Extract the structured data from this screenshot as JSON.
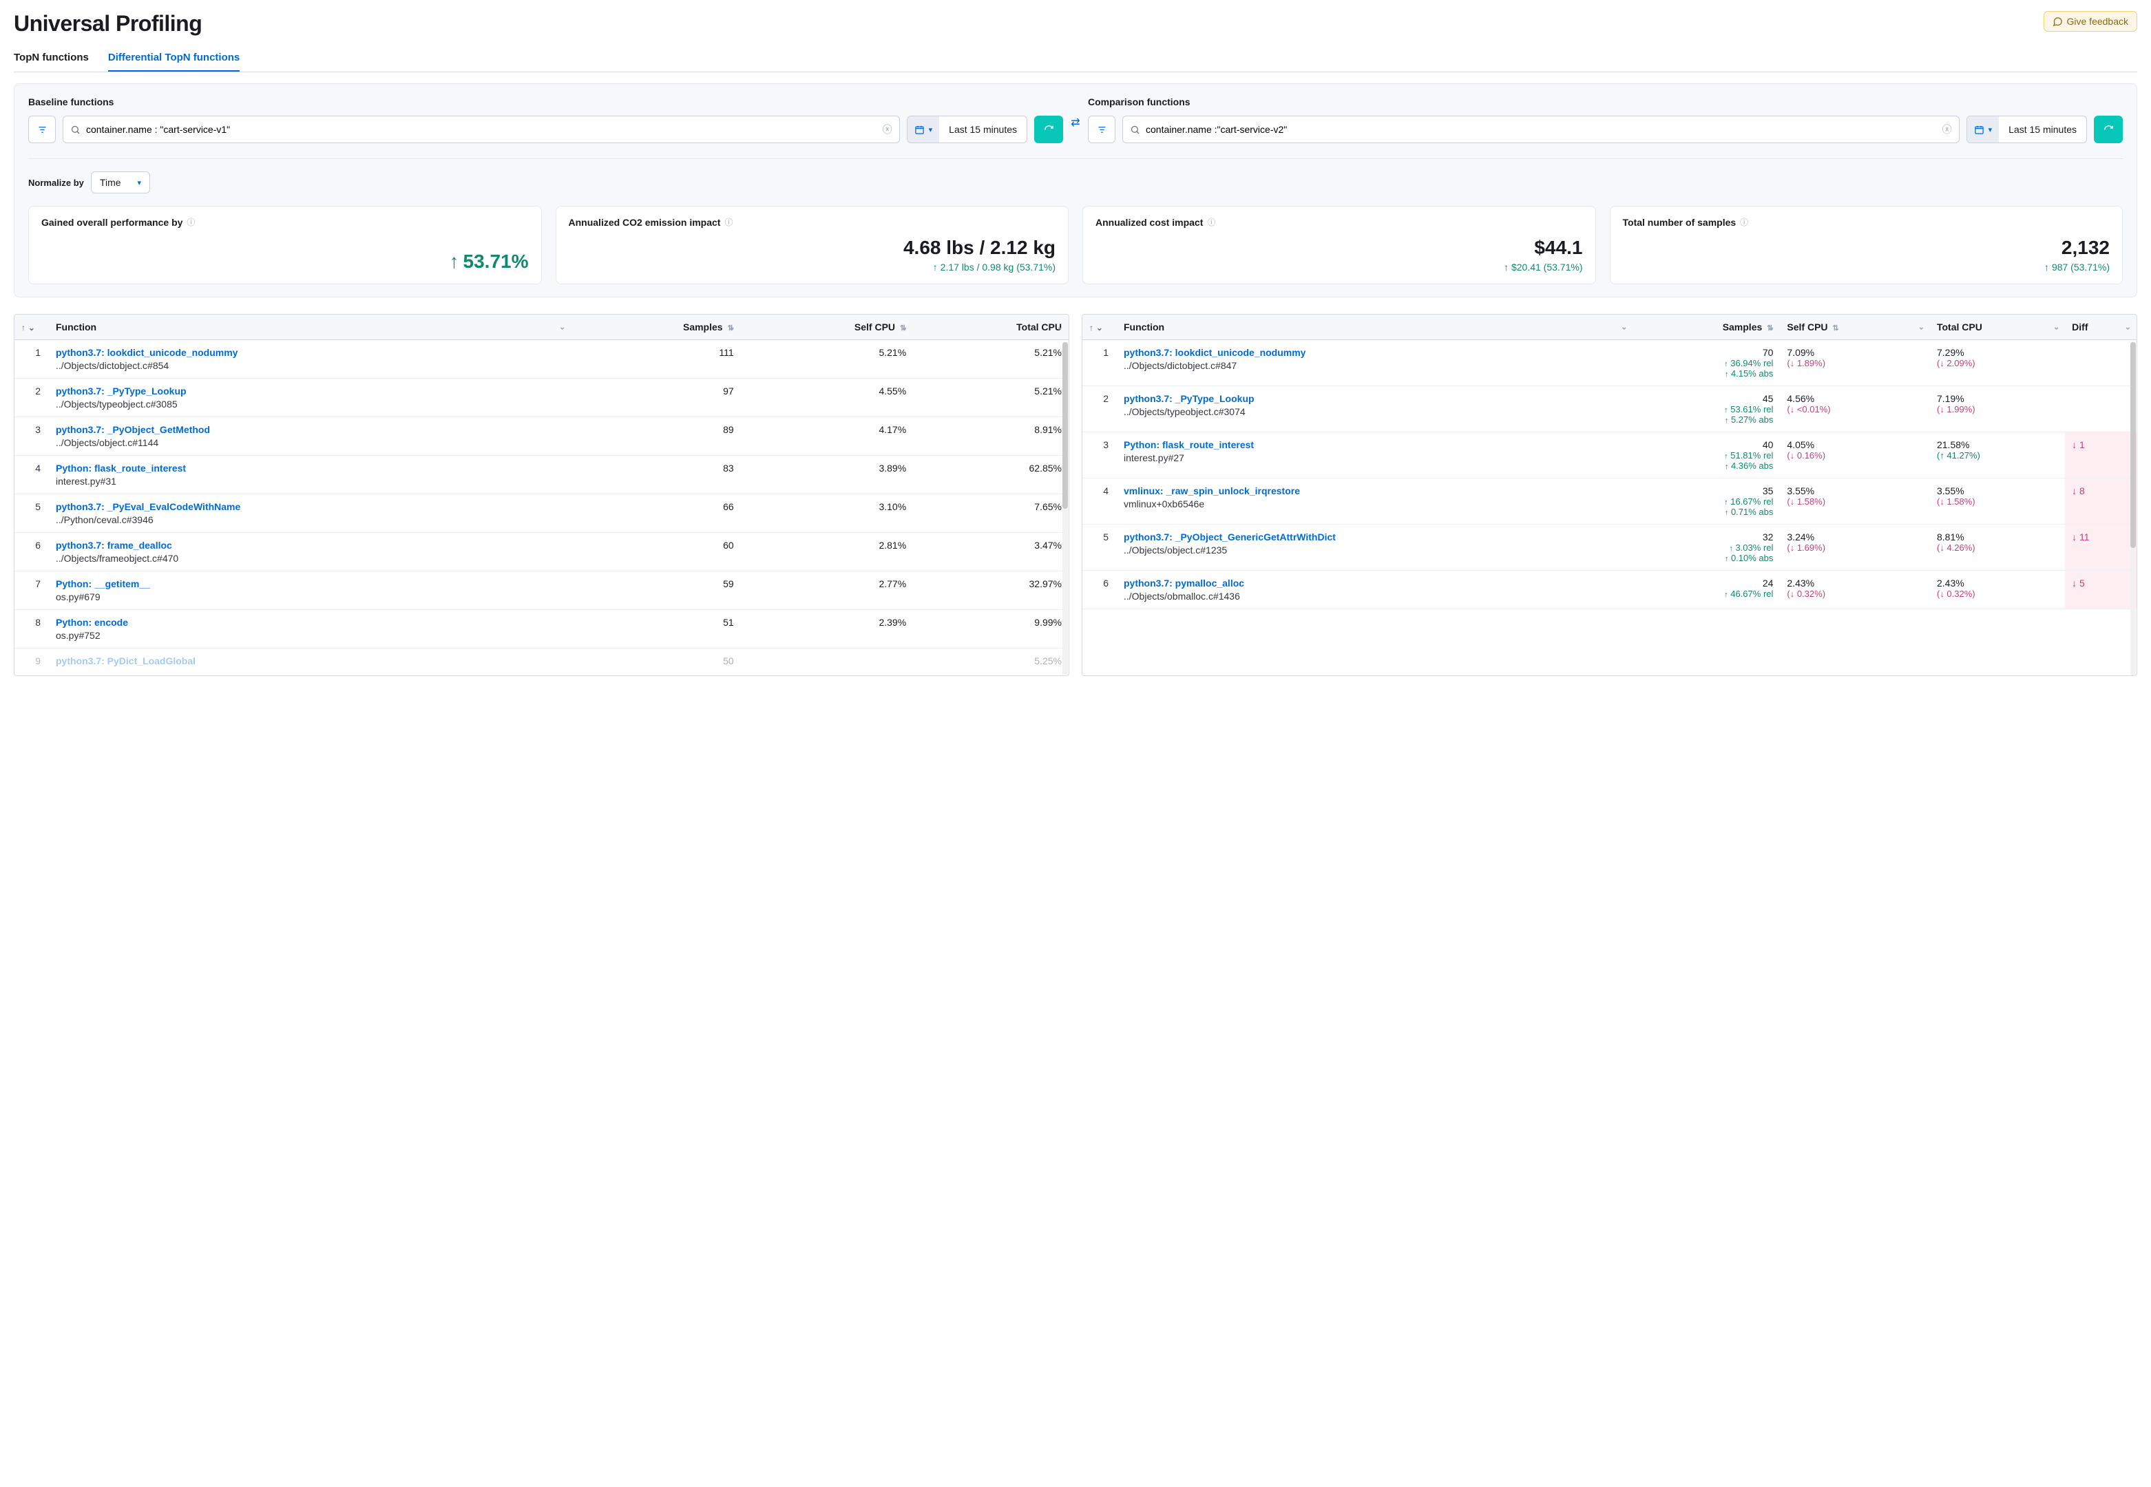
{
  "title": "Universal Profiling",
  "feedback_label": "Give feedback",
  "tabs": {
    "topn": "TopN functions",
    "diff": "Differential TopN functions"
  },
  "filters": {
    "baseline_heading": "Baseline functions",
    "comparison_heading": "Comparison functions",
    "baseline_query": "container.name : \"cart-service-v1\"",
    "comparison_query": "container.name :\"cart-service-v2\"",
    "date_range": "Last 15 minutes"
  },
  "normalize": {
    "label": "Normalize by",
    "value": "Time"
  },
  "kpi": {
    "perf": {
      "title": "Gained overall performance by",
      "value": "53.71%"
    },
    "co2": {
      "title": "Annualized CO2 emission impact",
      "value": "4.68 lbs / 2.12 kg",
      "sub": "2.17 lbs / 0.98 kg (53.71%)"
    },
    "cost": {
      "title": "Annualized cost impact",
      "value": "$44.1",
      "sub": "$20.41 (53.71%)"
    },
    "samples": {
      "title": "Total number of samples",
      "value": "2,132",
      "sub": "987 (53.71%)"
    }
  },
  "cols": {
    "function": "Function",
    "samples": "Samples",
    "selfcpu": "Self CPU",
    "totalcpu": "Total CPU",
    "diff": "Diff"
  },
  "baseline_rows": [
    {
      "rank": "1",
      "fn": "python3.7: lookdict_unicode_nodummy",
      "loc": "../Objects/dictobject.c#854",
      "samples": "111",
      "self": "5.21%",
      "total": "5.21%"
    },
    {
      "rank": "2",
      "fn": "python3.7: _PyType_Lookup",
      "loc": "../Objects/typeobject.c#3085",
      "samples": "97",
      "self": "4.55%",
      "total": "5.21%"
    },
    {
      "rank": "3",
      "fn": "python3.7: _PyObject_GetMethod",
      "loc": "../Objects/object.c#1144",
      "samples": "89",
      "self": "4.17%",
      "total": "8.91%"
    },
    {
      "rank": "4",
      "fn": "Python: flask_route_interest",
      "loc": "interest.py#31",
      "samples": "83",
      "self": "3.89%",
      "total": "62.85%"
    },
    {
      "rank": "5",
      "fn": "python3.7: _PyEval_EvalCodeWithName",
      "loc": "../Python/ceval.c#3946",
      "samples": "66",
      "self": "3.10%",
      "total": "7.65%"
    },
    {
      "rank": "6",
      "fn": "python3.7: frame_dealloc",
      "loc": "../Objects/frameobject.c#470",
      "samples": "60",
      "self": "2.81%",
      "total": "3.47%"
    },
    {
      "rank": "7",
      "fn": "Python: __getitem__",
      "loc": "os.py#679",
      "samples": "59",
      "self": "2.77%",
      "total": "32.97%"
    },
    {
      "rank": "8",
      "fn": "Python: encode",
      "loc": "os.py#752",
      "samples": "51",
      "self": "2.39%",
      "total": "9.99%"
    }
  ],
  "baseline_partial": {
    "rank": "9",
    "fn": "python3.7: PyDict_LoadGlobal",
    "samples": "50",
    "total": "5.25%"
  },
  "comp_rows": [
    {
      "rank": "1",
      "fn": "python3.7: lookdict_unicode_nodummy",
      "loc": "../Objects/dictobject.c#847",
      "samples": "70",
      "rel": "36.94% rel",
      "abs": "4.15% abs",
      "self": "7.09%",
      "self_d": "(↓ 1.89%)",
      "total": "7.29%",
      "total_d": "(↓ 2.09%)",
      "diff": "",
      "diff_bg": false
    },
    {
      "rank": "2",
      "fn": "python3.7: _PyType_Lookup",
      "loc": "../Objects/typeobject.c#3074",
      "samples": "45",
      "rel": "53.61% rel",
      "abs": "5.27% abs",
      "self": "4.56%",
      "self_d": "(↓ <0.01%)",
      "total": "7.19%",
      "total_d": "(↓ 1.99%)",
      "diff": "",
      "diff_bg": false
    },
    {
      "rank": "3",
      "fn": "Python: flask_route_interest",
      "loc": "interest.py#27",
      "samples": "40",
      "rel": "51.81% rel",
      "abs": "4.36% abs",
      "self": "4.05%",
      "self_d": "(↓ 0.16%)",
      "total": "21.58%",
      "total_d": "(↑ 41.27%)",
      "total_up": true,
      "diff": "1",
      "diff_bg": true
    },
    {
      "rank": "4",
      "fn": "vmlinux: _raw_spin_unlock_irqrestore",
      "loc": "vmlinux+0xb6546e",
      "samples": "35",
      "rel": "16.67% rel",
      "abs": "0.71% abs",
      "self": "3.55%",
      "self_d": "(↓ 1.58%)",
      "total": "3.55%",
      "total_d": "(↓ 1.58%)",
      "diff": "8",
      "diff_bg": true
    },
    {
      "rank": "5",
      "fn": "python3.7: _PyObject_GenericGetAttrWithDict",
      "loc": "../Objects/object.c#1235",
      "samples": "32",
      "rel": "3.03% rel",
      "abs": "0.10% abs",
      "self": "3.24%",
      "self_d": "(↓ 1.69%)",
      "total": "8.81%",
      "total_d": "(↓ 4.26%)",
      "diff": "11",
      "diff_bg": true
    },
    {
      "rank": "6",
      "fn": "python3.7: pymalloc_alloc",
      "loc": "../Objects/obmalloc.c#1436",
      "samples": "24",
      "rel": "46.67% rel",
      "abs": "",
      "self": "2.43%",
      "self_d": "(↓ 0.32%)",
      "total": "2.43%",
      "total_d": "(↓ 0.32%)",
      "diff": "5",
      "diff_bg": true
    }
  ]
}
